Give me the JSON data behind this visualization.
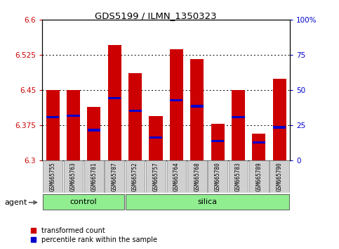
{
  "title": "GDS5199 / ILMN_1350323",
  "samples": [
    "GSM665755",
    "GSM665763",
    "GSM665781",
    "GSM665787",
    "GSM665752",
    "GSM665757",
    "GSM665764",
    "GSM665768",
    "GSM665780",
    "GSM665783",
    "GSM665789",
    "GSM665790"
  ],
  "red_values": [
    6.45,
    6.45,
    6.415,
    6.547,
    6.487,
    6.395,
    6.537,
    6.517,
    6.378,
    6.45,
    6.357,
    6.475
  ],
  "blue_values": [
    6.393,
    6.396,
    6.365,
    6.433,
    6.406,
    6.349,
    6.429,
    6.416,
    6.342,
    6.393,
    6.339,
    6.371
  ],
  "ymin": 6.3,
  "ymax": 6.6,
  "yticks_left": [
    6.3,
    6.375,
    6.45,
    6.525,
    6.6
  ],
  "yticks_right_labels": [
    "0",
    "25",
    "50",
    "75",
    "100%"
  ],
  "control_count": 4,
  "bar_color": "#CC0000",
  "blue_color": "#0000CC",
  "bar_width": 0.65,
  "blue_bar_height": 0.005,
  "legend_labels": [
    "transformed count",
    "percentile rank within the sample"
  ],
  "bg_color": "#FFFFFF",
  "tick_color_left": "#CC0000",
  "tick_color_right": "#0000CC",
  "group_bg_color": "#90EE90",
  "sample_box_color": "#D0D0D0"
}
